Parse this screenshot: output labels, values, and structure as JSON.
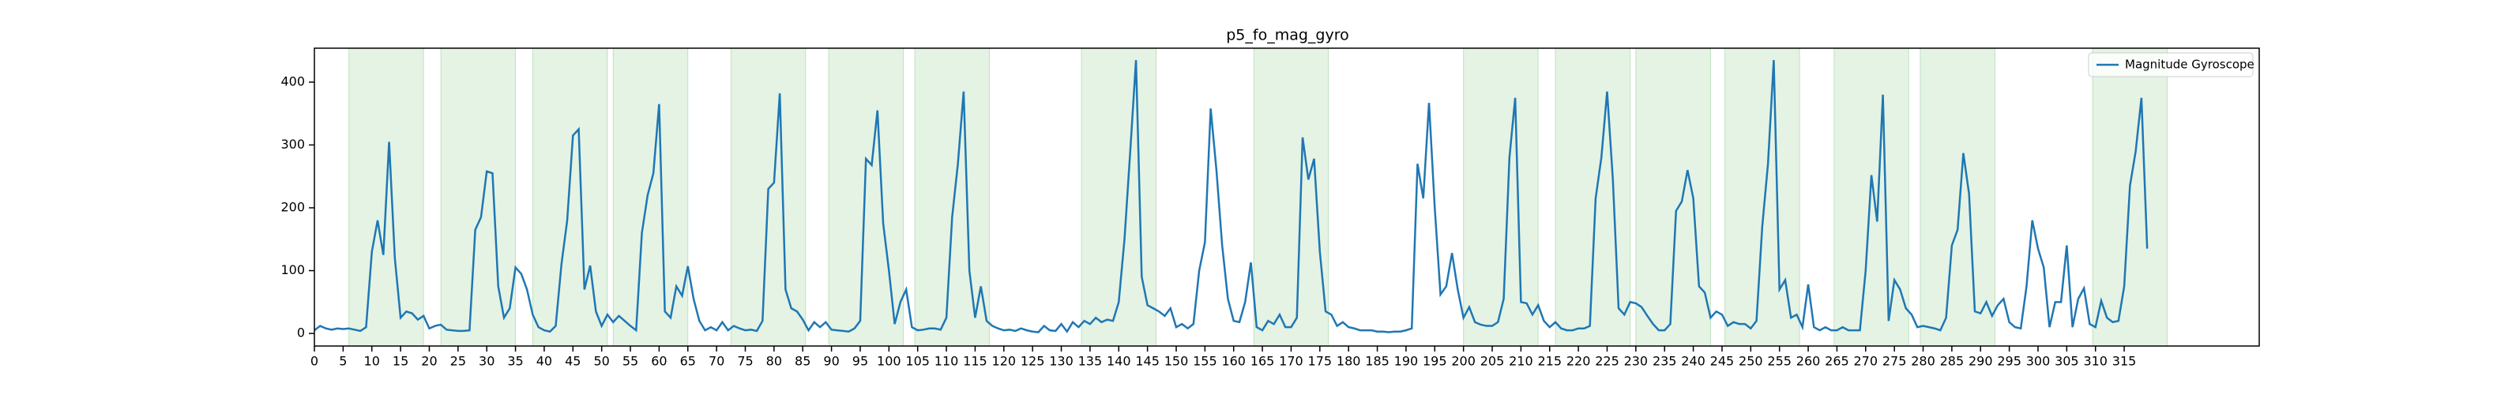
{
  "chart_data": {
    "type": "line",
    "title": "p5_fo_mag_gyro",
    "series": [
      {
        "name": "Magnitude Gyroscope",
        "color": "#1f77b4",
        "values": [
          5,
          12,
          8,
          6,
          8,
          7,
          8,
          6,
          4,
          10,
          130,
          180,
          125,
          305,
          120,
          25,
          35,
          32,
          22,
          28,
          8,
          12,
          14,
          6,
          5,
          4,
          4,
          5,
          165,
          185,
          258,
          255,
          75,
          25,
          40,
          105,
          95,
          70,
          30,
          10,
          5,
          3,
          12,
          110,
          180,
          315,
          325,
          70,
          108,
          35,
          12,
          30,
          18,
          28,
          20,
          12,
          5,
          160,
          220,
          255,
          365,
          35,
          25,
          75,
          60,
          107,
          55,
          20,
          5,
          10,
          5,
          18,
          5,
          12,
          8,
          5,
          6,
          4,
          20,
          230,
          240,
          382,
          70,
          40,
          35,
          22,
          5,
          18,
          10,
          18,
          6,
          5,
          4,
          3,
          8,
          20,
          278,
          268,
          355,
          175,
          100,
          15,
          50,
          70,
          10,
          5,
          6,
          8,
          8,
          6,
          25,
          185,
          270,
          385,
          100,
          25,
          75,
          20,
          12,
          8,
          5,
          6,
          4,
          8,
          5,
          3,
          2,
          12,
          5,
          4,
          15,
          3,
          18,
          10,
          20,
          15,
          25,
          18,
          22,
          20,
          50,
          150,
          290,
          435,
          90,
          45,
          40,
          35,
          28,
          40,
          10,
          15,
          8,
          15,
          100,
          145,
          358,
          260,
          140,
          55,
          20,
          18,
          50,
          113,
          10,
          5,
          20,
          15,
          30,
          10,
          10,
          25,
          312,
          245,
          278,
          130,
          35,
          30,
          12,
          18,
          10,
          8,
          5,
          5,
          5,
          3,
          3,
          2,
          3,
          3,
          5,
          8,
          270,
          215,
          367,
          200,
          62,
          75,
          128,
          70,
          25,
          42,
          18,
          14,
          12,
          12,
          18,
          55,
          280,
          375,
          50,
          48,
          30,
          45,
          20,
          10,
          18,
          8,
          5,
          5,
          8,
          8,
          12,
          215,
          280,
          385,
          245,
          40,
          30,
          50,
          48,
          42,
          28,
          15,
          5,
          5,
          15,
          195,
          210,
          260,
          215,
          75,
          65,
          25,
          35,
          30,
          12,
          18,
          15,
          15,
          8,
          20,
          170,
          270,
          435,
          70,
          85,
          25,
          30,
          10,
          78,
          10,
          5,
          10,
          5,
          5,
          10,
          5,
          5,
          5,
          100,
          252,
          178,
          380,
          20,
          85,
          70,
          40,
          30,
          10,
          12,
          10,
          8,
          5,
          25,
          140,
          165,
          287,
          222,
          35,
          32,
          50,
          28,
          45,
          55,
          18,
          10,
          8,
          75,
          180,
          135,
          105,
          10,
          50,
          50,
          140,
          10,
          55,
          72,
          15,
          10,
          52,
          25,
          18,
          20,
          75,
          235,
          290,
          375,
          135
        ]
      }
    ],
    "spans": [
      [
        6,
        19
      ],
      [
        22,
        35
      ],
      [
        38,
        51
      ],
      [
        52,
        65
      ],
      [
        72.5,
        85.5
      ],
      [
        89.5,
        102.5
      ],
      [
        104.5,
        117.5
      ],
      [
        133.5,
        146.5
      ],
      [
        163.5,
        176.5
      ],
      [
        200,
        213
      ],
      [
        216,
        229
      ],
      [
        230,
        243
      ],
      [
        245.5,
        258.5
      ],
      [
        264.5,
        277.5
      ],
      [
        279.5,
        292.5
      ],
      [
        309.5,
        322.5
      ]
    ],
    "span_color": "#2ca02c",
    "xlim": [
      0,
      338.5
    ],
    "ylim": [
      -20,
      454
    ],
    "xticks": [
      0,
      5,
      10,
      15,
      20,
      25,
      30,
      35,
      40,
      45,
      50,
      55,
      60,
      65,
      70,
      75,
      80,
      85,
      90,
      95,
      100,
      105,
      110,
      115,
      120,
      125,
      130,
      135,
      140,
      145,
      150,
      155,
      160,
      165,
      170,
      175,
      180,
      185,
      190,
      195,
      200,
      205,
      210,
      215,
      220,
      225,
      230,
      235,
      240,
      245,
      250,
      255,
      260,
      265,
      270,
      275,
      280,
      285,
      290,
      295,
      300,
      305,
      310,
      315
    ],
    "yticks": [
      0,
      100,
      200,
      300,
      400
    ],
    "legend": "upper right"
  }
}
